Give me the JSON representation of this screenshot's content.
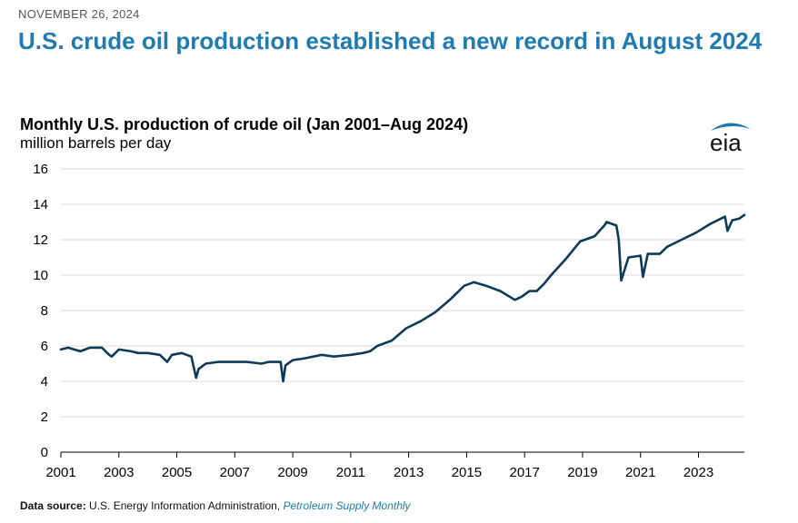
{
  "header": {
    "date": "NOVEMBER 26, 2024",
    "headline": "U.S. crude oil production established a new record in August 2024"
  },
  "logo": {
    "text": "eia",
    "icon": "eia-logo",
    "arc_color": "#1f7bb0"
  },
  "source": {
    "label": "Data source:",
    "text": "U.S. Energy Information Administration,",
    "publication": "Petroleum Supply Monthly"
  },
  "colors": {
    "line": "#0d3a56",
    "grid": "#d9d9d9",
    "axis": "#000000"
  },
  "chart_data": {
    "type": "line",
    "title": "Monthly U.S. production of crude oil (Jan 2001–Aug 2024)",
    "subtitle": "million barrels per day",
    "ylim": [
      0,
      16
    ],
    "yticks": [
      0,
      2,
      4,
      6,
      8,
      10,
      12,
      14,
      16
    ],
    "xlim": [
      "2001-01",
      "2024-08"
    ],
    "xticks": [
      "2001",
      "2003",
      "2005",
      "2007",
      "2009",
      "2011",
      "2013",
      "2015",
      "2017",
      "2019",
      "2021",
      "2023"
    ],
    "grid": true,
    "series": [
      {
        "points": [
          [
            "2001-01",
            5.8
          ],
          [
            "2001-04",
            5.9
          ],
          [
            "2001-09",
            5.7
          ],
          [
            "2002-01",
            5.9
          ],
          [
            "2002-06",
            5.9
          ],
          [
            "2002-09",
            5.5
          ],
          [
            "2002-10",
            5.4
          ],
          [
            "2003-01",
            5.8
          ],
          [
            "2003-06",
            5.7
          ],
          [
            "2003-09",
            5.6
          ],
          [
            "2004-01",
            5.6
          ],
          [
            "2004-06",
            5.5
          ],
          [
            "2004-09",
            5.1
          ],
          [
            "2004-11",
            5.5
          ],
          [
            "2005-03",
            5.6
          ],
          [
            "2005-07",
            5.4
          ],
          [
            "2005-09",
            4.2
          ],
          [
            "2005-10",
            4.7
          ],
          [
            "2006-01",
            5.0
          ],
          [
            "2006-06",
            5.1
          ],
          [
            "2007-01",
            5.1
          ],
          [
            "2007-06",
            5.1
          ],
          [
            "2007-12",
            5.0
          ],
          [
            "2008-03",
            5.1
          ],
          [
            "2008-08",
            5.1
          ],
          [
            "2008-09",
            4.0
          ],
          [
            "2008-10",
            4.9
          ],
          [
            "2009-01",
            5.2
          ],
          [
            "2009-06",
            5.3
          ],
          [
            "2010-01",
            5.5
          ],
          [
            "2010-06",
            5.4
          ],
          [
            "2011-01",
            5.5
          ],
          [
            "2011-06",
            5.6
          ],
          [
            "2011-09",
            5.7
          ],
          [
            "2011-12",
            6.0
          ],
          [
            "2012-06",
            6.3
          ],
          [
            "2012-12",
            7.0
          ],
          [
            "2013-06",
            7.4
          ],
          [
            "2013-12",
            7.9
          ],
          [
            "2014-06",
            8.6
          ],
          [
            "2014-12",
            9.4
          ],
          [
            "2015-04",
            9.6
          ],
          [
            "2015-09",
            9.4
          ],
          [
            "2016-03",
            9.1
          ],
          [
            "2016-09",
            8.6
          ],
          [
            "2016-12",
            8.8
          ],
          [
            "2017-03",
            9.1
          ],
          [
            "2017-06",
            9.1
          ],
          [
            "2017-09",
            9.5
          ],
          [
            "2017-12",
            10.0
          ],
          [
            "2018-06",
            10.9
          ],
          [
            "2018-12",
            11.9
          ],
          [
            "2019-06",
            12.2
          ],
          [
            "2019-10",
            12.8
          ],
          [
            "2019-11",
            13.0
          ],
          [
            "2020-03",
            12.8
          ],
          [
            "2020-04",
            12.0
          ],
          [
            "2020-05",
            9.7
          ],
          [
            "2020-08",
            11.0
          ],
          [
            "2021-01",
            11.1
          ],
          [
            "2021-02",
            9.9
          ],
          [
            "2021-04",
            11.2
          ],
          [
            "2021-09",
            11.2
          ],
          [
            "2021-12",
            11.6
          ],
          [
            "2022-06",
            12.0
          ],
          [
            "2022-12",
            12.4
          ],
          [
            "2023-06",
            12.9
          ],
          [
            "2023-12",
            13.3
          ],
          [
            "2024-01",
            12.5
          ],
          [
            "2024-03",
            13.1
          ],
          [
            "2024-06",
            13.2
          ],
          [
            "2024-08",
            13.4
          ]
        ]
      }
    ]
  }
}
